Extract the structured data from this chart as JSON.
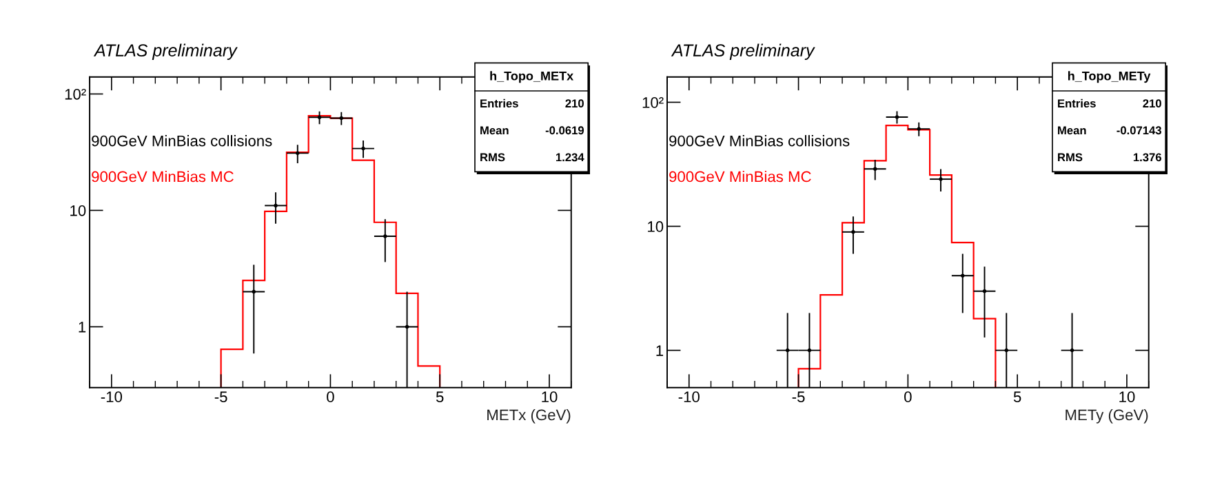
{
  "chart_data": [
    {
      "type": "histogram",
      "title": "ATLAS preliminary",
      "xlabel": "METx (GeV)",
      "xlim": [
        -11,
        11
      ],
      "xticks": [
        -10,
        -5,
        0,
        5,
        10
      ],
      "ylim": [
        0.3,
        140
      ],
      "yticks": [
        1,
        10,
        {
          "value": 100,
          "label": "10²"
        }
      ],
      "log": true,
      "grid": false,
      "legend": false,
      "annotations": [
        "h_Topo_METx",
        "Entries",
        "210",
        "Mean",
        "-0.0619",
        "RMS",
        "1.234"
      ],
      "series": [
        {
          "name": "900GeV MinBias collisions",
          "type": "scatter",
          "color": "#000000",
          "marker": "circle",
          "x": [
            -3.5,
            -2.5,
            -1.5,
            -0.5,
            0.5,
            1.5,
            2.5,
            3.5
          ],
          "values": [
            2,
            11,
            31,
            63,
            62,
            34,
            6,
            1
          ],
          "errors": [
            1.41,
            3.3,
            5.6,
            7.9,
            7.9,
            5.8,
            2.4,
            [
              0.3,
              2
            ]
          ],
          "xerrors": [
            0.5,
            0.5,
            0.5,
            0.5,
            0.5,
            0.5,
            0.5,
            0.5
          ]
        },
        {
          "name": "900GeV MinBias MC",
          "color": "#ff0000",
          "bins": [
            -5,
            -4,
            -3,
            -2,
            -1,
            0,
            1,
            2,
            3,
            4,
            5
          ],
          "values": [
            0.64,
            2.5,
            9.8,
            31.5,
            65,
            62,
            27,
            7.9,
            1.94,
            0.46
          ]
        }
      ]
    },
    {
      "type": "histogram",
      "title": "ATLAS preliminary",
      "xlabel": "METy (GeV)",
      "xlim": [
        -11,
        11
      ],
      "xticks": [
        -10,
        -5,
        0,
        5,
        10
      ],
      "ylim": [
        0.5,
        160
      ],
      "yticks": [
        1,
        10,
        {
          "value": 100,
          "label": "10²"
        }
      ],
      "log": true,
      "grid": false,
      "legend": false,
      "annotations": [
        "h_Topo_METy",
        "Entries",
        "210",
        "Mean",
        "-0.07143",
        "RMS",
        "1.376"
      ],
      "series": [
        {
          "name": "900GeV MinBias collisions",
          "type": "scatter",
          "color": "#000000",
          "marker": "circle",
          "x": [
            -5.5,
            -4.5,
            -2.5,
            -1.5,
            -0.5,
            0.5,
            1.5,
            2.5,
            3.5,
            4.5,
            7.5
          ],
          "values": [
            1,
            1,
            9,
            29,
            76,
            61,
            24,
            4,
            3,
            1,
            1
          ],
          "errors": [
            [
              0.5,
              2
            ],
            [
              0.5,
              2
            ],
            3,
            5.4,
            8.7,
            7.8,
            4.9,
            2,
            1.73,
            [
              0.5,
              2
            ],
            [
              0.5,
              2
            ]
          ],
          "xerrors": [
            0.5,
            0.5,
            0.5,
            0.5,
            0.5,
            0.5,
            0.5,
            0.5,
            0.5,
            0.5,
            0.5
          ]
        },
        {
          "name": "900GeV MinBias MC",
          "color": "#ff0000",
          "bins": [
            -5,
            -4,
            -3,
            -2,
            -1,
            0,
            1,
            2,
            3,
            4
          ],
          "values": [
            0.71,
            2.8,
            10.7,
            33.8,
            65,
            60,
            25.9,
            7.4,
            1.8
          ]
        }
      ]
    }
  ]
}
